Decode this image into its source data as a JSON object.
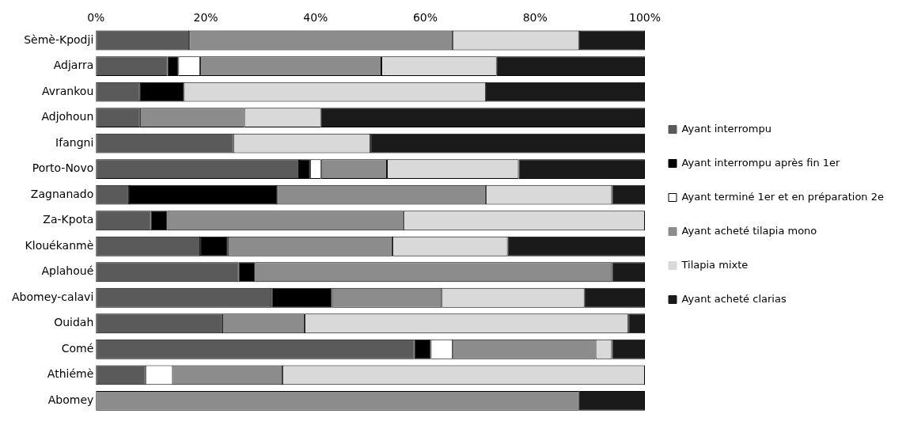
{
  "chart_data": {
    "type": "bar",
    "orientation": "horizontal",
    "stacked": true,
    "categories": [
      "Sèmè-Kpodji",
      "Adjarra",
      "Avrankou",
      "Adjohoun",
      "Ifangni",
      "Porto-Novo",
      "Zagnanado",
      "Za-Kpota",
      "Klouékanmè",
      "Aplahoué",
      "Abomey-calavi",
      "Ouidah",
      "Comé",
      "Athiémè",
      "Abomey"
    ],
    "series": [
      {
        "name": "Ayant interrompu",
        "color": "#5a5a5a",
        "values": [
          17,
          13,
          8,
          8,
          25,
          37,
          6,
          10,
          19,
          26,
          32,
          23,
          58,
          9,
          0
        ]
      },
      {
        "name": "Ayant interrompu après fin 1er",
        "color": "#000000",
        "values": [
          0,
          2,
          8,
          0,
          0,
          2,
          27,
          3,
          5,
          3,
          11,
          0,
          3,
          0,
          0
        ]
      },
      {
        "name": "Ayant terminé 1er et en préparation 2e",
        "color": "#ffffff",
        "values": [
          0,
          4,
          0,
          0,
          0,
          2,
          0,
          0,
          0,
          0,
          0,
          0,
          4,
          5,
          0
        ]
      },
      {
        "name": "Ayant acheté tilapia mono",
        "color": "#8c8c8c",
        "values": [
          48,
          33,
          0,
          19,
          0,
          12,
          38,
          43,
          30,
          65,
          20,
          15,
          26,
          20,
          88
        ]
      },
      {
        "name": "Tilapia mixte",
        "color": "#d9d9d9",
        "values": [
          23,
          21,
          55,
          14,
          25,
          24,
          23,
          44,
          21,
          0,
          26,
          59,
          3,
          66,
          0
        ]
      },
      {
        "name": "Ayant acheté clarias",
        "color": "#1a1a1a",
        "values": [
          12,
          27,
          29,
          59,
          50,
          23,
          6,
          0,
          25,
          6,
          11,
          3,
          6,
          0,
          12
        ]
      }
    ],
    "xlim": [
      0,
      100
    ],
    "xticks": [
      {
        "value": 0,
        "label": "0%"
      },
      {
        "value": 20,
        "label": "20%"
      },
      {
        "value": 40,
        "label": "40%"
      },
      {
        "value": 60,
        "label": "60%"
      },
      {
        "value": 80,
        "label": "80%"
      },
      {
        "value": 100,
        "label": "100%"
      }
    ],
    "grid": false,
    "legend": "right"
  }
}
